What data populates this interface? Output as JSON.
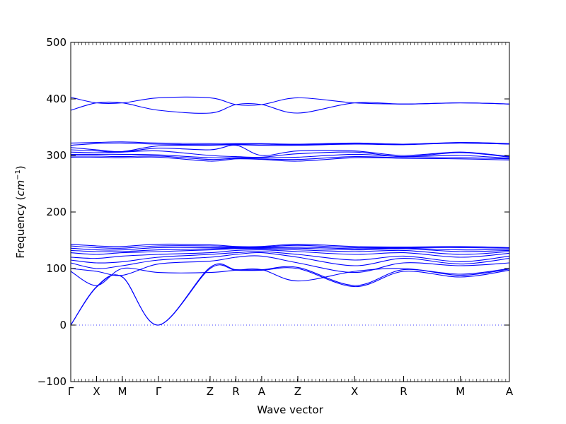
{
  "chart_data": {
    "type": "line",
    "title": "",
    "xlabel": "Wave vector",
    "ylabel_prefix": "Frequency (",
    "ylabel_unit_base": "cm",
    "ylabel_unit_exp": "−1",
    "ylabel_suffix": ")",
    "ylim": [
      -100,
      500
    ],
    "xlim": [
      0,
      17
    ],
    "yticks": [
      "−100",
      "0",
      "100",
      "200",
      "300",
      "400",
      "500"
    ],
    "ytick_values": [
      -100,
      0,
      100,
      200,
      300,
      400,
      500
    ],
    "grid": false,
    "line_color": "#0000ff",
    "zero_line_color": "#0000ff",
    "high_symmetry_points": [
      {
        "label": "Γ",
        "x": 0
      },
      {
        "label": "X",
        "x": 1
      },
      {
        "label": "M",
        "x": 2
      },
      {
        "label": "Γ",
        "x": 3.4
      },
      {
        "label": "Z",
        "x": 5.4
      },
      {
        "label": "R",
        "x": 6.4
      },
      {
        "label": "A",
        "x": 7.4
      },
      {
        "label": "Z",
        "x": 8.8
      },
      {
        "label": "X",
        "x": 11
      },
      {
        "label": "R",
        "x": 12.9
      },
      {
        "label": "M",
        "x": 15.1
      },
      {
        "label": "A",
        "x": 17
      }
    ],
    "series": [
      {
        "x": [
          0,
          1,
          2,
          3.4,
          5.4,
          6.4,
          7.4,
          8.8,
          11,
          12.9,
          15.1,
          17
        ],
        "values": [
          0,
          67,
          85,
          0,
          100,
          97,
          97,
          100,
          68,
          95,
          85,
          97
        ]
      },
      {
        "x": [
          0,
          1,
          2,
          3.4,
          5.4,
          6.4,
          7.4,
          8.8,
          11,
          12.9,
          15.1,
          17
        ],
        "values": [
          0,
          68,
          85,
          0,
          102,
          98,
          98,
          102,
          70,
          98,
          88,
          99
        ]
      },
      {
        "x": [
          0,
          1,
          2,
          3.4,
          5.4,
          6.4,
          7.4,
          8.8,
          11,
          12.9,
          15.1,
          17
        ],
        "values": [
          95,
          70,
          100,
          93,
          93,
          97,
          98,
          78,
          95,
          100,
          90,
          100
        ]
      },
      {
        "x": [
          0,
          1,
          2,
          3.4,
          5.4,
          6.4,
          7.4,
          8.8,
          11,
          12.9,
          15.1,
          17
        ],
        "values": [
          100,
          95,
          88,
          108,
          113,
          120,
          122,
          110,
          93,
          110,
          105,
          110
        ]
      },
      {
        "x": [
          0,
          1,
          2,
          3.4,
          5.4,
          6.4,
          7.4,
          8.8,
          11,
          12.9,
          15.1,
          17
        ],
        "values": [
          110,
          100,
          105,
          115,
          120,
          125,
          128,
          120,
          105,
          118,
          108,
          118
        ]
      },
      {
        "x": [
          0,
          1,
          2,
          3.4,
          5.4,
          6.4,
          7.4,
          8.8,
          11,
          12.9,
          15.1,
          17
        ],
        "values": [
          115,
          110,
          112,
          120,
          125,
          128,
          130,
          125,
          115,
          122,
          112,
          122
        ]
      },
      {
        "x": [
          0,
          1,
          2,
          3.4,
          5.4,
          6.4,
          7.4,
          8.8,
          11,
          12.9,
          15.1,
          17
        ],
        "values": [
          120,
          118,
          122,
          125,
          128,
          132,
          133,
          130,
          125,
          128,
          120,
          127
        ]
      },
      {
        "x": [
          0,
          1,
          2,
          3.4,
          5.4,
          6.4,
          7.4,
          8.8,
          11,
          12.9,
          15.1,
          17
        ],
        "values": [
          128,
          125,
          128,
          130,
          133,
          135,
          135,
          133,
          130,
          132,
          125,
          130
        ]
      },
      {
        "x": [
          0,
          1,
          2,
          3.4,
          5.4,
          6.4,
          7.4,
          8.8,
          11,
          12.9,
          15.1,
          17
        ],
        "values": [
          132,
          130,
          130,
          133,
          135,
          136,
          136,
          136,
          133,
          135,
          130,
          132
        ]
      },
      {
        "x": [
          0,
          1,
          2,
          3.4,
          5.4,
          6.4,
          7.4,
          8.8,
          11,
          12.9,
          15.1,
          17
        ],
        "values": [
          136,
          133,
          133,
          137,
          137,
          137,
          137,
          138,
          135,
          136,
          133,
          134
        ]
      },
      {
        "x": [
          0,
          1,
          2,
          3.4,
          5.4,
          6.4,
          7.4,
          8.8,
          11,
          12.9,
          15.1,
          17
        ],
        "values": [
          140,
          137,
          136,
          140,
          140,
          138,
          138,
          141,
          137,
          137,
          137,
          136
        ]
      },
      {
        "x": [
          0,
          1,
          2,
          3.4,
          5.4,
          6.4,
          7.4,
          8.8,
          11,
          12.9,
          15.1,
          17
        ],
        "values": [
          143,
          140,
          139,
          143,
          142,
          139,
          139,
          143,
          139,
          138,
          139,
          137
        ]
      },
      {
        "x": [
          0,
          1,
          2,
          3.4,
          5.4,
          6.4,
          7.4,
          8.8,
          11,
          12.9,
          15.1,
          17
        ],
        "values": [
          297,
          297,
          296,
          297,
          290,
          294,
          293,
          290,
          296,
          295,
          294,
          292
        ]
      },
      {
        "x": [
          0,
          1,
          2,
          3.4,
          5.4,
          6.4,
          7.4,
          8.8,
          11,
          12.9,
          15.1,
          17
        ],
        "values": [
          299,
          299,
          298,
          299,
          293,
          295,
          294,
          293,
          298,
          296,
          296,
          294
        ]
      },
      {
        "x": [
          0,
          1,
          2,
          3.4,
          5.4,
          6.4,
          7.4,
          8.8,
          11,
          12.9,
          15.1,
          17
        ],
        "values": [
          302,
          302,
          302,
          301,
          296,
          296,
          296,
          297,
          302,
          298,
          300,
          295
        ]
      },
      {
        "x": [
          0,
          1,
          2,
          3.4,
          5.4,
          6.4,
          7.4,
          8.8,
          11,
          12.9,
          15.1,
          17
        ],
        "values": [
          306,
          305,
          306,
          308,
          300,
          298,
          297,
          303,
          306,
          298,
          305,
          297
        ]
      },
      {
        "x": [
          0,
          1,
          2,
          3.4,
          5.4,
          6.4,
          7.4,
          8.8,
          11,
          12.9,
          15.1,
          17
        ],
        "values": [
          310,
          308,
          306,
          313,
          310,
          318,
          300,
          308,
          308,
          300,
          306,
          298
        ]
      },
      {
        "x": [
          0,
          1,
          2,
          3.4,
          5.4,
          6.4,
          7.4,
          8.8,
          11,
          12.9,
          15.1,
          17
        ],
        "values": [
          314,
          310,
          307,
          317,
          318,
          319,
          318,
          318,
          320,
          319,
          322,
          320
        ]
      },
      {
        "x": [
          0,
          1,
          2,
          3.4,
          5.4,
          6.4,
          7.4,
          8.8,
          11,
          12.9,
          15.1,
          17
        ],
        "values": [
          318,
          321,
          322,
          320,
          319,
          320,
          320,
          319,
          321,
          320,
          322,
          320
        ]
      },
      {
        "x": [
          0,
          1,
          2,
          3.4,
          5.4,
          6.4,
          7.4,
          8.8,
          11,
          12.9,
          15.1,
          17
        ],
        "values": [
          322,
          323,
          324,
          322,
          321,
          321,
          321,
          320,
          322,
          320,
          323,
          321
        ]
      },
      {
        "x": [
          0,
          1,
          2,
          3.4,
          5.4,
          6.4,
          7.4,
          8.8,
          11,
          12.9,
          15.1,
          17
        ],
        "values": [
          380,
          393,
          393,
          380,
          375,
          390,
          390,
          375,
          393,
          391,
          393,
          391
        ]
      },
      {
        "x": [
          0,
          1,
          2,
          3.4,
          5.4,
          6.4,
          7.4,
          8.8,
          11,
          12.9,
          15.1,
          17
        ],
        "values": [
          403,
          393,
          393,
          402,
          402,
          390,
          390,
          402,
          393,
          391,
          393,
          391
        ]
      }
    ]
  }
}
